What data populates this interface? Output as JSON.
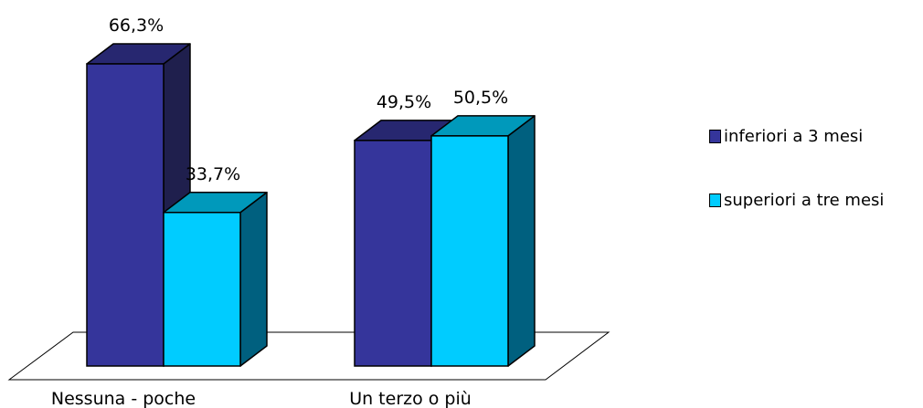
{
  "chart_data": {
    "type": "bar",
    "title": "",
    "xlabel": "",
    "ylabel": "",
    "ylim": [
      0,
      80
    ],
    "grid": false,
    "legend_position": "right",
    "categories": [
      "Nessuna - poche",
      "Un terzo o più"
    ],
    "series": [
      {
        "name": "inferiori a 3 mesi",
        "values": [
          66.3,
          49.5
        ],
        "labels": [
          "66,3%",
          "49,5%"
        ],
        "color": "#35359b"
      },
      {
        "name": "superiori a tre mesi",
        "values": [
          33.7,
          50.5
        ],
        "labels": [
          "33,7%",
          "50,5%"
        ],
        "color": "#00ccff"
      }
    ]
  }
}
